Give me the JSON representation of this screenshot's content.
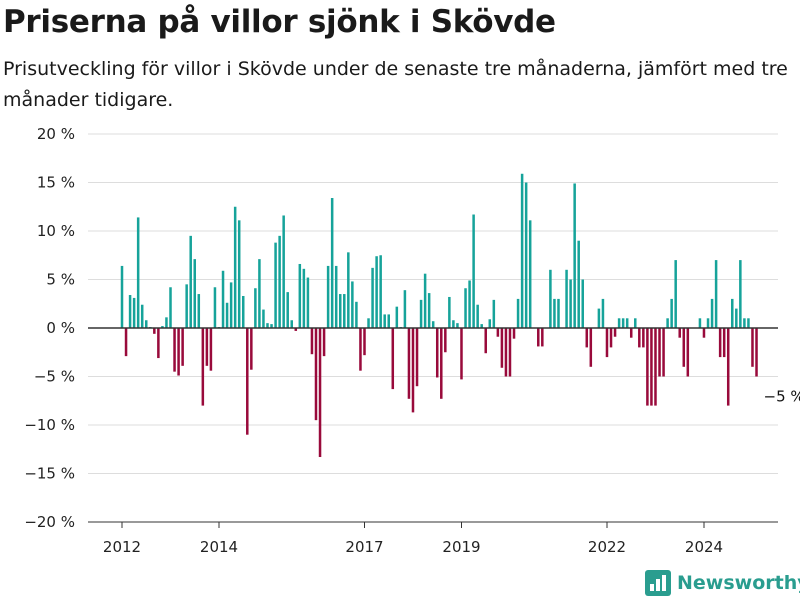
{
  "title": "Priserna på villor sjönk i Skövde",
  "subtitle": "Prisutveckling för villor i Skövde under de senaste tre månaderna, jämfört med tre månader tidigare.",
  "brand": {
    "name": "Newsworthy"
  },
  "colors": {
    "positive": "#16a39a",
    "negative": "#990a3b",
    "grid": "#dddddd",
    "axis": "#333333",
    "brand": "#2a9d8f"
  },
  "chart_data": {
    "type": "bar",
    "title": "Priserna på villor sjönk i Skövde",
    "xlabel": "",
    "ylabel": "",
    "ylim": [
      -20,
      20
    ],
    "x_start": 2012.0,
    "x_step_years": 0.08333,
    "x_ticks": [
      2012,
      2014,
      2017,
      2019,
      2022,
      2024
    ],
    "x_tick_labels": [
      "2012",
      "2014",
      "2017",
      "2019",
      "2022",
      "2024"
    ],
    "y_ticks": [
      20,
      15,
      10,
      5,
      0,
      -5,
      -10,
      -15,
      -20
    ],
    "y_tick_labels": [
      "20 %",
      "15 %",
      "10 %",
      "5 %",
      "0 %",
      "−5 %",
      "−10 %",
      "−15 %",
      "−20 %"
    ],
    "grid": true,
    "annotation": {
      "label": "−5 %",
      "value": -5
    },
    "values": [
      6.4,
      -2.9,
      3.4,
      3.1,
      11.4,
      2.4,
      0.8,
      0.1,
      -0.6,
      -3.1,
      0.2,
      1.1,
      4.2,
      -4.5,
      -4.9,
      -3.9,
      4.5,
      9.5,
      7.1,
      3.5,
      -8.0,
      -3.9,
      -4.4,
      4.2,
      0.1,
      5.9,
      2.6,
      4.7,
      12.5,
      11.1,
      3.3,
      -11.0,
      -4.3,
      4.1,
      7.1,
      1.9,
      0.5,
      0.4,
      8.8,
      9.5,
      11.6,
      3.7,
      0.8,
      -0.3,
      6.6,
      6.1,
      5.2,
      -2.7,
      -9.5,
      -13.3,
      -2.9,
      6.4,
      13.4,
      6.4,
      3.5,
      3.5,
      7.8,
      4.8,
      2.7,
      -4.4,
      -2.8,
      1.0,
      6.2,
      7.4,
      7.5,
      1.4,
      1.4,
      -6.3,
      2.2,
      0.1,
      3.9,
      -7.3,
      -8.7,
      -6.0,
      2.9,
      5.6,
      3.6,
      0.7,
      -5.1,
      -7.3,
      -2.5,
      3.2,
      0.8,
      0.5,
      -5.3,
      4.1,
      4.9,
      11.7,
      2.4,
      0.4,
      -2.6,
      0.9,
      2.9,
      -0.9,
      -4.1,
      -5.0,
      -5.0,
      -1.1,
      3.0,
      15.9,
      15.0,
      11.1,
      0.0,
      -1.9,
      -1.9,
      0.0,
      6.0,
      3.0,
      3.0,
      0.0,
      6.0,
      5.0,
      14.9,
      9.0,
      5.0,
      -2.0,
      -4.0,
      0.0,
      2.0,
      3.0,
      -3.0,
      -2.0,
      -0.9,
      1.0,
      1.0,
      1.0,
      -1.0,
      1.0,
      -2.0,
      -2.0,
      -8.0,
      -8.0,
      -8.0,
      -5.0,
      -5.0,
      1.0,
      3.0,
      7.0,
      -1.0,
      -4.0,
      -5.0,
      0.0,
      0.0,
      1.0,
      -1.0,
      1.0,
      3.0,
      7.0,
      -3.0,
      -3.0,
      -8.0,
      3.0,
      2.0,
      7.0,
      1.0,
      1.0,
      -4.0,
      -5.0
    ]
  }
}
